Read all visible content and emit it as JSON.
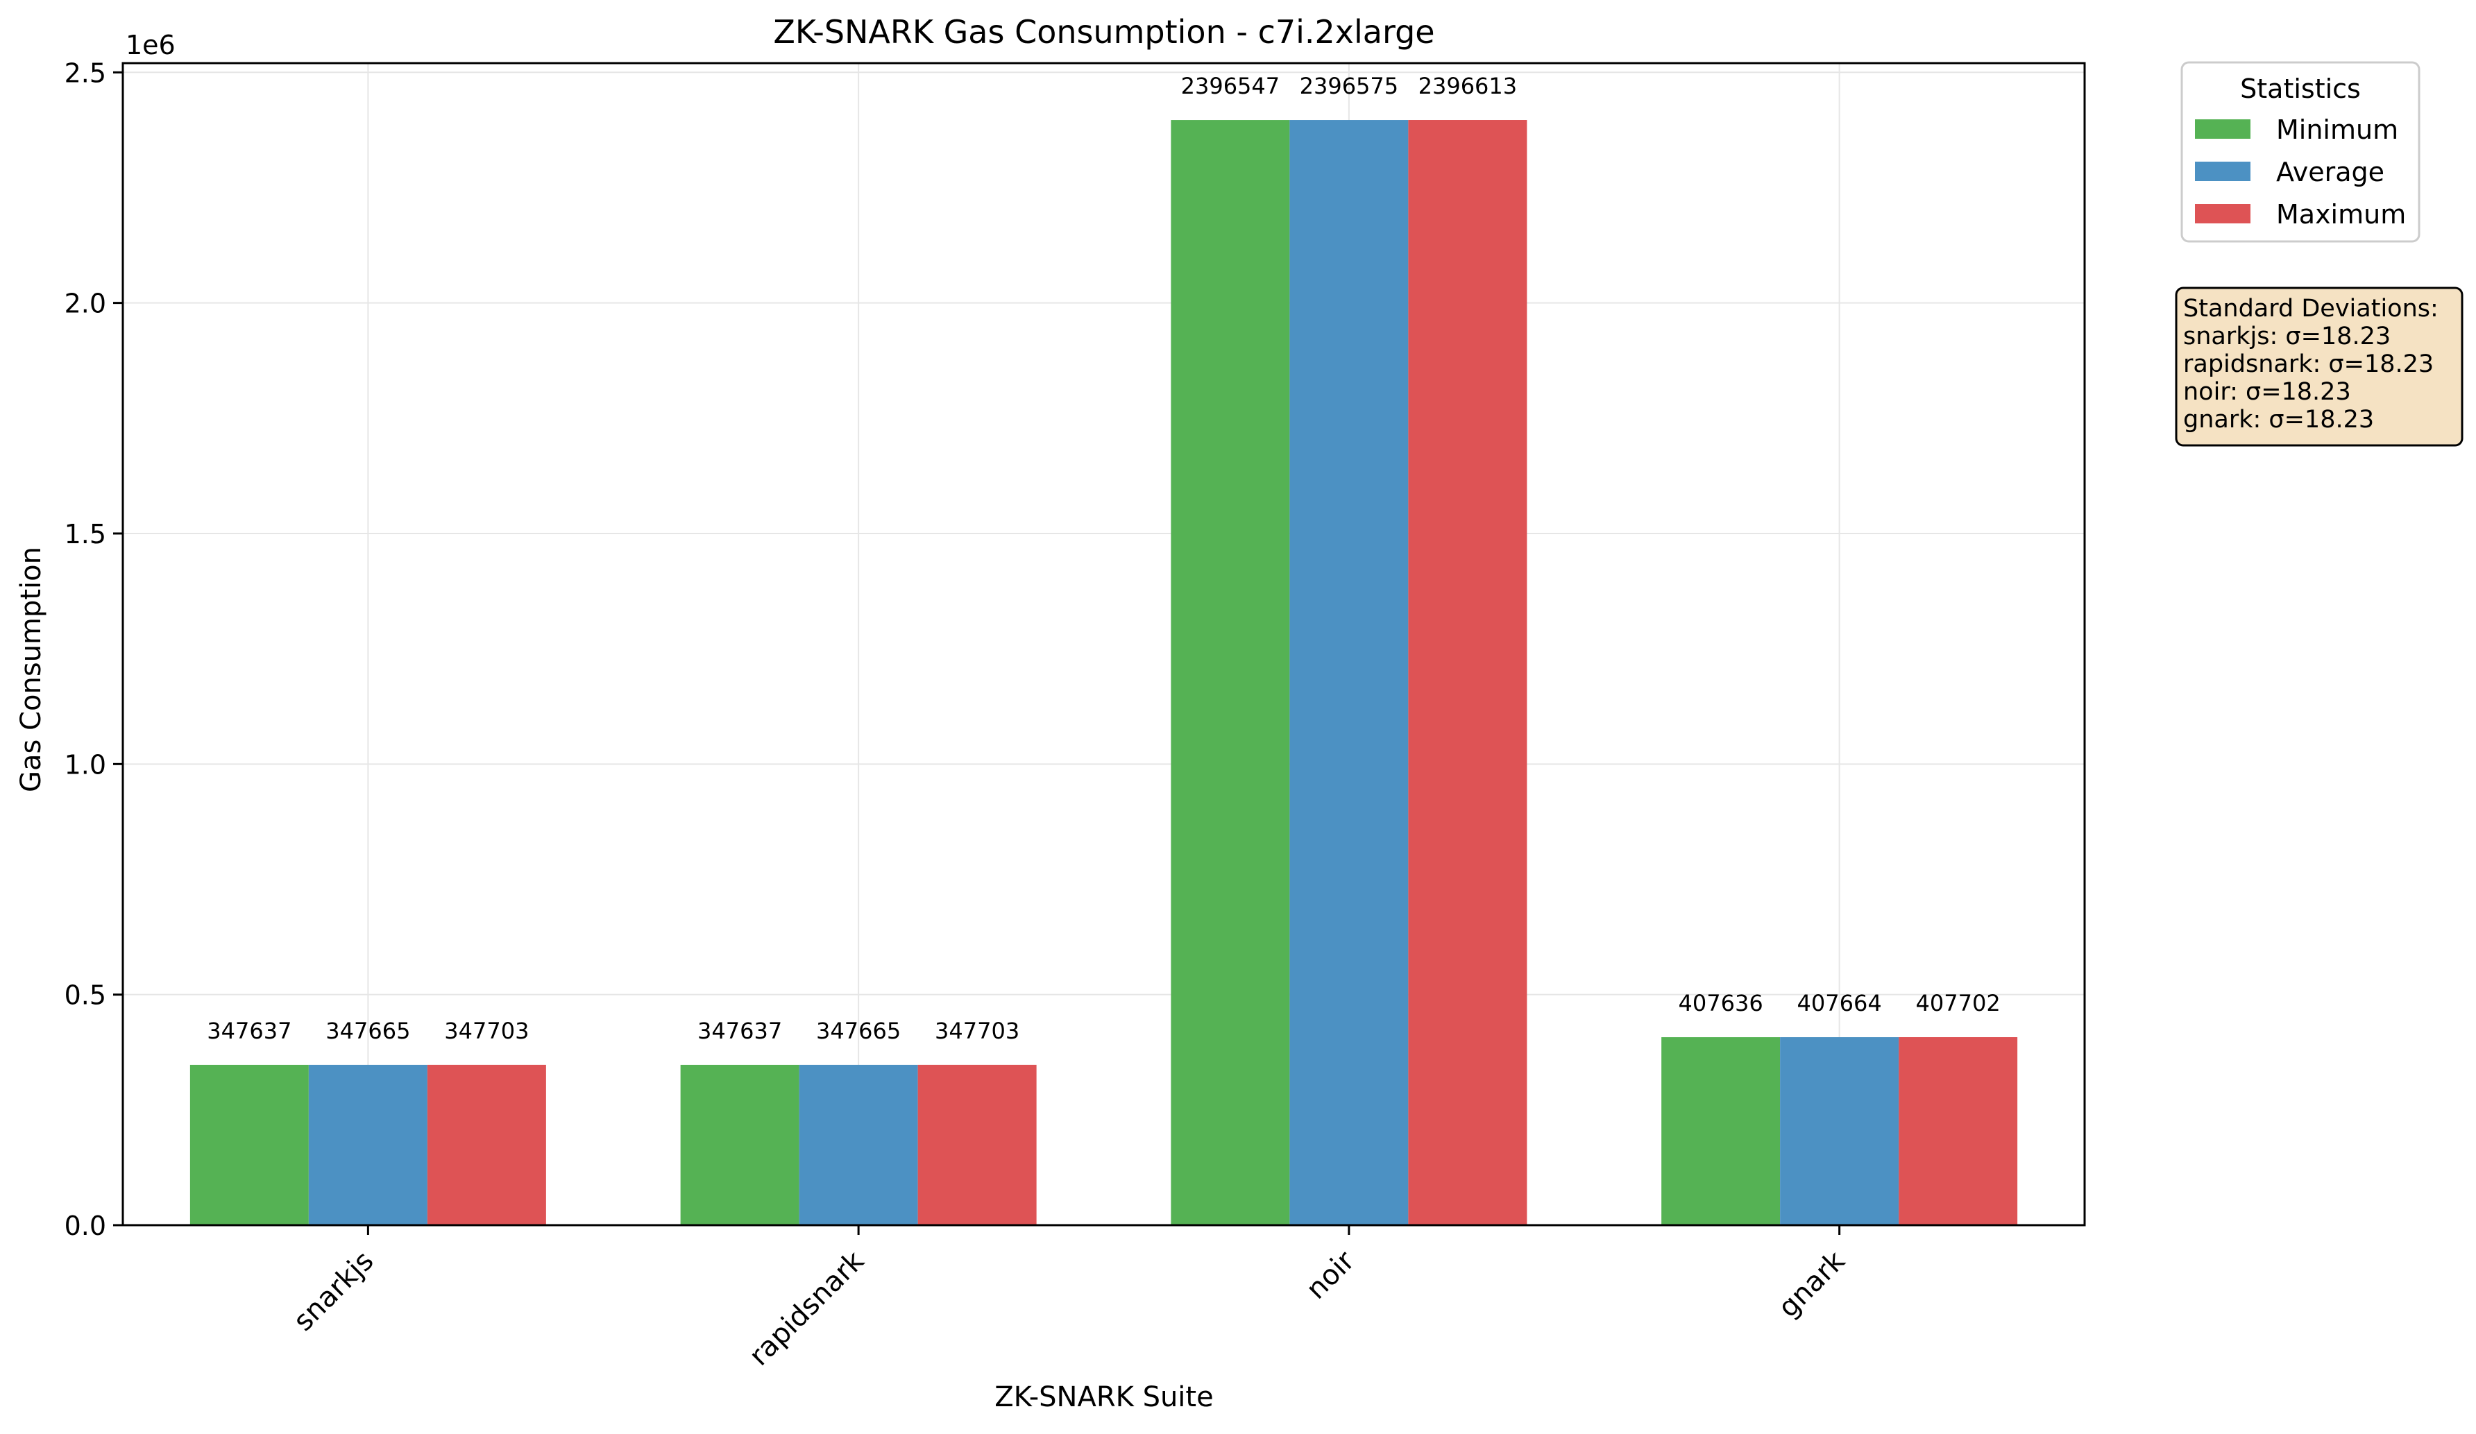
{
  "chart_data": {
    "type": "bar",
    "title": "ZK-SNARK Gas Consumption - c7i.2xlarge",
    "xlabel": "ZK-SNARK Suite",
    "ylabel": "Gas Consumption",
    "y_offset_label": "1e6",
    "ylim": [
      0,
      2520000
    ],
    "yticks": [
      {
        "value": 0,
        "label": "0.0"
      },
      {
        "value": 500000,
        "label": "0.5"
      },
      {
        "value": 1000000,
        "label": "1.0"
      },
      {
        "value": 1500000,
        "label": "1.5"
      },
      {
        "value": 2000000,
        "label": "2.0"
      },
      {
        "value": 2500000,
        "label": "2.5"
      }
    ],
    "categories": [
      "snarkjs",
      "rapidsnark",
      "noir",
      "gnark"
    ],
    "series": [
      {
        "name": "Minimum",
        "color": "#55b254",
        "values": [
          347637,
          347637,
          2396547,
          407636
        ],
        "labels": [
          "347637",
          "347637",
          "2396547",
          "407636"
        ]
      },
      {
        "name": "Average",
        "color": "#4c91c3",
        "values": [
          347665,
          347665,
          2396575,
          407664
        ],
        "labels": [
          "347665",
          "347665",
          "2396575",
          "407664"
        ]
      },
      {
        "name": "Maximum",
        "color": "#de5355",
        "values": [
          347703,
          347703,
          2396613,
          407702
        ],
        "labels": [
          "347703",
          "347703",
          "2396613",
          "407702"
        ]
      }
    ],
    "grid": true,
    "legend": {
      "title": "Statistics",
      "placement": "outside-top-right"
    },
    "annotation": {
      "title": "Standard Deviations:",
      "lines": [
        "snarkjs: σ=18.23",
        "rapidsnark: σ=18.23",
        "noir: σ=18.23",
        "gnark: σ=18.23"
      ],
      "background": "#f5e2c3"
    }
  }
}
